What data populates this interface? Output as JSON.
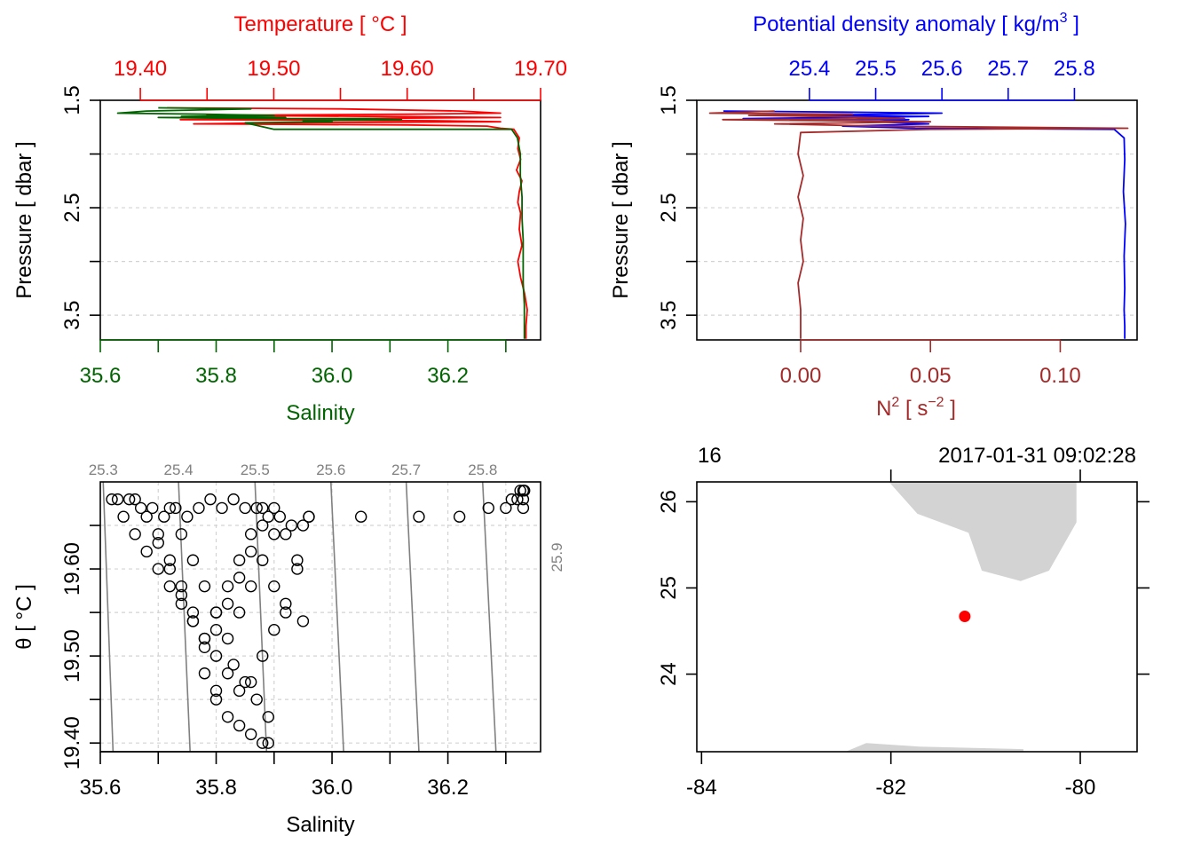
{
  "colors": {
    "temperature": "#ff0000",
    "salinity": "#006400",
    "density": "#0000ff",
    "n2": "#a52a2a",
    "grid": "#d3d3d3",
    "isopycnal": "#808080",
    "land": "#d3d3d3",
    "station": "#ff0000",
    "axis": "#000000"
  },
  "chart_data": [
    {
      "id": "ts_profile",
      "type": "line",
      "title": "Temperature [ °C ]",
      "xlabel": "Salinity",
      "ylabel": "Pressure [ dbar ]",
      "top_axis": {
        "label": "Temperature [ °C ]",
        "range": [
          19.37,
          19.7
        ],
        "ticks": [
          19.4,
          19.45,
          19.5,
          19.55,
          19.6,
          19.65,
          19.7
        ],
        "tick_labels": [
          "19.40",
          "19.50",
          "19.60",
          "19.70"
        ],
        "labeled_ticks": [
          19.4,
          19.5,
          19.6,
          19.7
        ]
      },
      "bottom_axis": {
        "label": "Salinity",
        "range": [
          35.6,
          36.36
        ],
        "ticks": [
          35.6,
          35.7,
          35.8,
          35.9,
          36.0,
          36.1,
          36.2,
          36.3
        ],
        "tick_labels": [
          "35.6",
          "35.8",
          "36.0",
          "36.2"
        ],
        "labeled_ticks": [
          35.6,
          35.8,
          36.0,
          36.2
        ]
      },
      "y_axis": {
        "range": [
          1.5,
          3.73
        ],
        "reversed": true,
        "ticks": [
          1.5,
          2.0,
          2.5,
          3.0,
          3.5
        ],
        "tick_labels": [
          "1.5",
          "2.5",
          "3.5"
        ],
        "labeled_ticks": [
          1.5,
          2.5,
          3.5
        ],
        "grid": [
          2.0,
          2.5,
          3.0,
          3.5
        ]
      },
      "series": [
        {
          "key": "temperature",
          "axis": "top",
          "x": [
            19.42,
            19.55,
            19.64,
            19.67,
            19.6,
            19.45,
            19.58,
            19.67,
            19.55,
            19.43,
            19.62,
            19.67,
            19.5,
            19.44,
            19.6,
            19.66,
            19.67,
            19.68,
            19.684,
            19.683,
            19.685,
            19.682,
            19.686,
            19.684,
            19.683,
            19.685,
            19.684,
            19.686,
            19.683,
            19.685,
            19.688,
            19.69,
            19.689,
            19.689
          ],
          "y": [
            1.57,
            1.58,
            1.6,
            1.62,
            1.63,
            1.64,
            1.65,
            1.66,
            1.67,
            1.68,
            1.69,
            1.7,
            1.71,
            1.72,
            1.73,
            1.74,
            1.76,
            1.77,
            1.85,
            1.95,
            2.05,
            2.15,
            2.25,
            2.35,
            2.45,
            2.55,
            2.7,
            2.85,
            3.0,
            3.15,
            3.3,
            3.45,
            3.6,
            3.72
          ]
        },
        {
          "key": "salinity",
          "axis": "bottom",
          "x": [
            35.7,
            35.86,
            35.68,
            35.63,
            35.78,
            35.9,
            35.74,
            35.8,
            35.92,
            35.7,
            35.88,
            36.06,
            36.12,
            35.95,
            36.0,
            35.85,
            35.9,
            36.31,
            36.32,
            36.325,
            36.325,
            36.328,
            36.328,
            36.33,
            36.33,
            36.33,
            36.332,
            36.332,
            36.332
          ],
          "y": [
            1.57,
            1.58,
            1.6,
            1.62,
            1.63,
            1.64,
            1.65,
            1.65,
            1.66,
            1.66,
            1.67,
            1.67,
            1.68,
            1.69,
            1.7,
            1.71,
            1.77,
            1.77,
            1.85,
            2.0,
            2.2,
            2.4,
            2.6,
            2.8,
            3.0,
            3.2,
            3.4,
            3.6,
            3.72
          ]
        }
      ]
    },
    {
      "id": "density_profile",
      "type": "line",
      "title": "Potential density anomaly [ kg/m3 ]",
      "xlabel": "N2 [ s-2 ]",
      "ylabel": "Pressure [ dbar ]",
      "top_axis": {
        "label": "Potential density anomaly [ kg/m3 ]",
        "range": [
          25.23,
          25.8946
        ],
        "ticks": [
          25.4,
          25.5,
          25.6,
          25.7,
          25.8
        ],
        "tick_labels": [
          "25.4",
          "25.5",
          "25.6",
          "25.7",
          "25.8"
        ],
        "labeled_ticks": [
          25.4,
          25.5,
          25.6,
          25.7,
          25.8
        ]
      },
      "bottom_axis": {
        "label": "N2 [ s-2 ]",
        "range": [
          -0.04,
          0.1296
        ],
        "ticks": [
          0.0,
          0.05,
          0.1
        ],
        "tick_labels": [
          "0.00",
          "0.05",
          "0.10"
        ],
        "labeled_ticks": [
          0.0,
          0.05,
          0.1
        ]
      },
      "y_axis": {
        "range": [
          1.5,
          3.73
        ],
        "reversed": true,
        "ticks": [
          1.5,
          2.0,
          2.5,
          3.0,
          3.5
        ],
        "tick_labels": [
          "1.5",
          "2.5",
          "3.5"
        ],
        "labeled_ticks": [
          1.5,
          2.5,
          3.5
        ],
        "grid": [
          2.0,
          2.5,
          3.0,
          3.5
        ]
      },
      "series": [
        {
          "key": "density",
          "axis": "top",
          "x": [
            25.27,
            25.45,
            25.6,
            25.52,
            25.35,
            25.58,
            25.44,
            25.3,
            25.55,
            25.5,
            25.58,
            25.45,
            25.56,
            25.86,
            25.875,
            25.876,
            25.874,
            25.877,
            25.875,
            25.876,
            25.875,
            25.876,
            25.876
          ],
          "y": [
            1.6,
            1.61,
            1.62,
            1.63,
            1.64,
            1.65,
            1.66,
            1.67,
            1.68,
            1.7,
            1.72,
            1.74,
            1.76,
            1.77,
            1.85,
            2.05,
            2.35,
            2.65,
            2.95,
            3.25,
            3.45,
            3.6,
            3.72
          ]
        },
        {
          "key": "n2",
          "axis": "bottom",
          "x": [
            -0.01,
            -0.035,
            0.02,
            -0.02,
            0.01,
            0.04,
            -0.03,
            0.05,
            -0.01,
            0.03,
            0.126,
            0.05,
            0.0,
            -0.001,
            0.001,
            -0.001,
            0.001,
            0.0,
            0.001,
            -0.001,
            0.0,
            0.0
          ],
          "y": [
            1.6,
            1.62,
            1.63,
            1.64,
            1.65,
            1.67,
            1.68,
            1.7,
            1.72,
            1.74,
            1.76,
            1.77,
            1.8,
            2.0,
            2.2,
            2.4,
            2.6,
            2.8,
            3.0,
            3.2,
            3.45,
            3.72
          ]
        }
      ]
    },
    {
      "id": "ts_diagram",
      "type": "scatter",
      "title": "",
      "xlabel": "Salinity",
      "ylabel": "θ [ °C ]",
      "x_axis": {
        "range": [
          35.6,
          36.36
        ],
        "ticks": [
          35.6,
          35.7,
          35.8,
          35.9,
          36.0,
          36.1,
          36.2,
          36.3
        ],
        "tick_labels": [
          "35.6",
          "35.8",
          "36.0",
          "36.2"
        ],
        "labeled_ticks": [
          35.6,
          35.8,
          36.0,
          36.2
        ],
        "grid": [
          35.7,
          35.8,
          35.9,
          36.0,
          36.1,
          36.2,
          36.3
        ]
      },
      "y_axis": {
        "range": [
          19.39,
          19.7
        ],
        "ticks": [
          19.4,
          19.45,
          19.5,
          19.55,
          19.6,
          19.65
        ],
        "tick_labels": [
          "19.40",
          "19.50",
          "19.60"
        ],
        "labeled_ticks": [
          19.4,
          19.5,
          19.6
        ],
        "grid": [
          19.4,
          19.45,
          19.5,
          19.55,
          19.6,
          19.65
        ]
      },
      "isopycnals": {
        "labels": [
          "25.3",
          "25.4",
          "25.5",
          "25.6",
          "25.7",
          "25.8",
          "25.9"
        ],
        "lines": [
          {
            "label": "25.3",
            "s_bottom": 35.622,
            "s_top": 35.605
          },
          {
            "label": "25.4",
            "s_bottom": 35.755,
            "s_top": 35.735
          },
          {
            "label": "25.5",
            "s_bottom": 35.887,
            "s_top": 35.867
          },
          {
            "label": "25.6",
            "s_bottom": 36.02,
            "s_top": 35.998
          },
          {
            "label": "25.7",
            "s_bottom": 36.15,
            "s_top": 36.128
          },
          {
            "label": "25.8",
            "s_bottom": 36.283,
            "s_top": 36.26
          },
          {
            "label": "25.9",
            "s_bottom": 36.415,
            "s_top": 36.392
          }
        ]
      },
      "points": {
        "salinity": [
          35.62,
          35.64,
          35.66,
          35.68,
          35.7,
          35.72,
          35.74,
          35.76,
          35.78,
          35.8,
          35.82,
          35.84,
          35.86,
          35.88,
          35.9,
          35.92,
          35.94,
          35.66,
          35.68,
          35.7,
          35.72,
          35.74,
          35.76,
          35.78,
          35.8,
          35.82,
          35.84,
          35.86,
          35.88,
          35.9,
          35.92,
          35.94,
          35.7,
          35.72,
          35.74,
          35.76,
          35.78,
          35.8,
          35.82,
          35.84,
          35.86,
          35.88,
          35.9,
          35.72,
          35.74,
          35.76,
          35.78,
          35.8,
          35.82,
          35.84,
          35.86,
          35.88,
          35.9,
          35.92,
          35.95,
          35.63,
          35.65,
          35.67,
          35.69,
          35.71,
          35.73,
          35.75,
          35.77,
          35.79,
          35.81,
          35.83,
          35.85,
          35.87,
          35.89,
          35.91,
          35.93,
          35.95,
          35.96,
          35.8,
          35.82,
          35.84,
          35.86,
          35.88,
          35.78,
          35.8,
          35.83,
          35.85,
          35.87,
          35.89,
          35.89,
          35.96,
          36.05,
          36.15,
          36.22,
          36.27,
          36.3,
          36.31,
          36.32,
          36.325,
          36.33,
          36.33,
          36.33,
          36.332
        ],
        "theta": [
          19.68,
          19.66,
          19.64,
          19.62,
          19.6,
          19.58,
          19.56,
          19.54,
          19.52,
          19.5,
          19.48,
          19.46,
          19.47,
          19.5,
          19.53,
          19.56,
          19.6,
          19.68,
          19.66,
          19.63,
          19.6,
          19.57,
          19.54,
          19.51,
          19.53,
          19.56,
          19.59,
          19.62,
          19.65,
          19.67,
          19.64,
          19.61,
          19.64,
          19.61,
          19.58,
          19.55,
          19.52,
          19.55,
          19.58,
          19.61,
          19.64,
          19.67,
          19.64,
          19.67,
          19.64,
          19.61,
          19.58,
          19.55,
          19.52,
          19.55,
          19.58,
          19.61,
          19.58,
          19.55,
          19.54,
          19.68,
          19.68,
          19.67,
          19.67,
          19.66,
          19.67,
          19.66,
          19.67,
          19.68,
          19.67,
          19.68,
          19.67,
          19.67,
          19.66,
          19.66,
          19.65,
          19.65,
          19.66,
          19.45,
          19.43,
          19.42,
          19.41,
          19.4,
          19.48,
          19.46,
          19.49,
          19.47,
          19.45,
          19.43,
          19.4,
          19.66,
          19.66,
          19.66,
          19.66,
          19.67,
          19.67,
          19.68,
          19.68,
          19.69,
          19.69,
          19.68,
          19.67,
          19.69
        ]
      }
    },
    {
      "id": "station_map",
      "type": "scatter",
      "title": "2017-01-31 09:02:28",
      "xlabel": "",
      "ylabel": "",
      "top_left_label": "16",
      "timestamp": "2017-01-31 09:02:28",
      "x_axis": {
        "range": [
          -84.05,
          -79.4
        ],
        "ticks": [
          -84,
          -82,
          -80
        ],
        "tick_labels": [
          "-84",
          "-82",
          "-80"
        ],
        "labeled_ticks": [
          -84,
          -82,
          -80
        ],
        "top_ticks": [
          -82,
          -80
        ]
      },
      "y_axis": {
        "range": [
          23.1,
          26.23
        ],
        "ticks": [
          24,
          25,
          26
        ],
        "tick_labels": [
          "24",
          "25",
          "26"
        ],
        "labeled_ticks": [
          24,
          25,
          26
        ],
        "right_ticks": [
          24,
          25,
          26
        ]
      },
      "station": {
        "lon": -81.22,
        "lat": 24.67
      },
      "land": [
        {
          "lon": [
            -82.02,
            -81.72,
            -81.18,
            -81.04,
            -80.63,
            -80.33,
            -80.04,
            -80.04
          ],
          "lat": [
            26.23,
            25.86,
            25.64,
            25.2,
            25.08,
            25.2,
            25.76,
            26.23
          ]
        },
        {
          "lon": [
            -82.48,
            -82.26,
            -81.7,
            -80.6,
            -80.6
          ],
          "lat": [
            23.1,
            23.2,
            23.16,
            23.13,
            23.1
          ]
        }
      ]
    }
  ]
}
